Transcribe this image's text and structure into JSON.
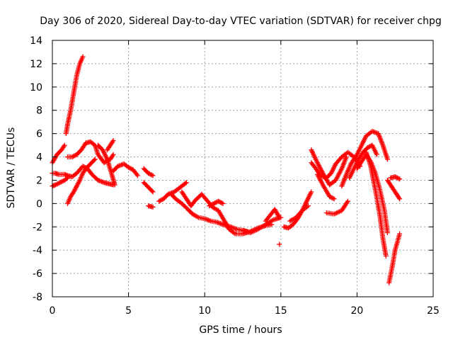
{
  "chart_data": {
    "type": "scatter",
    "title": "Day 306 of 2020, Sidereal Day-to-day VTEC variation (SDTVAR) for receiver chpg",
    "xlabel": "GPS time / hours",
    "ylabel": "SDTVAR / TECUs",
    "xlim": [
      0,
      25
    ],
    "ylim": [
      -8,
      14
    ],
    "xticks": [
      0,
      5,
      10,
      15,
      20,
      25
    ],
    "yticks": [
      -8,
      -6,
      -4,
      -2,
      0,
      2,
      4,
      6,
      8,
      10,
      12,
      14
    ],
    "grid": true,
    "marker": "+",
    "color": "#ff0000",
    "series": [
      {
        "name": "SDTVAR",
        "segments": [
          {
            "x": [
              0.0,
              0.3,
              0.6,
              0.8
            ],
            "y": [
              3.5,
              4.2,
              4.6,
              5.0
            ]
          },
          {
            "x": [
              0.0,
              0.2,
              0.4,
              0.6,
              0.8,
              1.0,
              1.3,
              1.6,
              2.0,
              2.3,
              2.6,
              3.0,
              3.4,
              3.7,
              4.0
            ],
            "y": [
              2.6,
              2.6,
              2.5,
              2.5,
              2.5,
              2.4,
              2.3,
              2.6,
              3.2,
              3.0,
              2.5,
              2.0,
              1.8,
              1.7,
              1.6
            ]
          },
          {
            "x": [
              0.0,
              0.2,
              0.5,
              0.8,
              1.0
            ],
            "y": [
              1.5,
              1.6,
              1.8,
              2.0,
              2.2
            ]
          },
          {
            "x": [
              0.9,
              1.0,
              1.2,
              1.4,
              1.6,
              1.8,
              2.0
            ],
            "y": [
              6.0,
              6.8,
              8.0,
              9.5,
              11.0,
              12.0,
              12.6
            ]
          },
          {
            "x": [
              1.0,
              1.2,
              1.4,
              1.6,
              1.8,
              2.0,
              2.2,
              2.5,
              2.8
            ],
            "y": [
              0.0,
              0.6,
              1.0,
              1.5,
              2.0,
              2.6,
              3.0,
              3.4,
              3.8
            ]
          },
          {
            "x": [
              1.0,
              1.3,
              1.6,
              1.9,
              2.2,
              2.5,
              2.8,
              3.0,
              3.4,
              3.8,
              4.0
            ],
            "y": [
              4.0,
              4.0,
              4.2,
              4.6,
              5.2,
              5.3,
              5.0,
              4.2,
              3.5,
              3.8,
              4.2
            ]
          },
          {
            "x": [
              3.0,
              3.3,
              3.6,
              3.9,
              4.1
            ],
            "y": [
              5.0,
              4.6,
              3.8,
              2.5,
              1.6
            ]
          },
          {
            "x": [
              4.0,
              3.8,
              3.6
            ],
            "y": [
              5.4,
              5.0,
              4.6
            ]
          },
          {
            "x": [
              4.0,
              4.3,
              4.7,
              5.0,
              5.3,
              5.6
            ],
            "y": [
              2.8,
              3.2,
              3.4,
              3.1,
              2.9,
              2.4
            ]
          },
          {
            "x": [
              6.0,
              6.3,
              6.6
            ],
            "y": [
              3.0,
              2.6,
              2.4
            ]
          },
          {
            "x": [
              6.0,
              6.3,
              6.6
            ],
            "y": [
              1.8,
              1.4,
              1.0
            ]
          },
          {
            "x": [
              6.3,
              6.6
            ],
            "y": [
              -0.2,
              -0.3
            ]
          },
          {
            "x": [
              7.0,
              7.3,
              7.6,
              8.0,
              8.3,
              8.6,
              8.8
            ],
            "y": [
              0.2,
              0.4,
              0.8,
              1.0,
              1.3,
              1.6,
              1.8
            ]
          },
          {
            "x": [
              7.8,
              8.1,
              8.5,
              8.9,
              9.2,
              9.6,
              10.0,
              10.4,
              10.8,
              11.2,
              11.7,
              12.1,
              12.5,
              12.8
            ],
            "y": [
              0.8,
              0.4,
              0.0,
              -0.5,
              -0.9,
              -1.2,
              -1.3,
              -1.5,
              -1.6,
              -1.8,
              -2.0,
              -2.2,
              -2.3,
              -2.4
            ]
          },
          {
            "x": [
              8.5,
              8.8,
              9.1,
              9.4,
              9.8,
              10.2,
              10.5,
              10.9,
              11.3,
              11.6,
              12.0,
              12.5,
              13.0,
              13.5,
              14.0,
              14.4
            ],
            "y": [
              1.0,
              0.4,
              -0.2,
              0.3,
              0.8,
              0.2,
              -0.3,
              -0.6,
              -1.5,
              -2.2,
              -2.6,
              -2.6,
              -2.4,
              -2.1,
              -1.9,
              -1.8
            ]
          },
          {
            "x": [
              10.3,
              10.6,
              10.9,
              11.2
            ],
            "y": [
              -0.2,
              0.0,
              0.2,
              0.0
            ]
          },
          {
            "x": [
              12.5,
              13.0,
              13.5,
              14.0,
              14.5,
              15.0
            ],
            "y": [
              -2.3,
              -2.5,
              -2.2,
              -1.8,
              -1.4,
              -1.2
            ]
          },
          {
            "x": [
              14.0,
              14.3,
              14.6,
              14.9
            ],
            "y": [
              -1.5,
              -1.0,
              -0.5,
              -1.2
            ]
          },
          {
            "x": [
              14.9
            ],
            "y": [
              -3.5
            ]
          },
          {
            "x": [
              15.2,
              15.5,
              15.8,
              16.1,
              16.4,
              16.7,
              17.0
            ],
            "y": [
              -2.0,
              -2.1,
              -1.8,
              -1.3,
              -0.6,
              0.2,
              1.0
            ]
          },
          {
            "x": [
              15.6,
              16.0,
              16.4,
              16.8
            ],
            "y": [
              -1.5,
              -1.2,
              -0.6,
              -0.2
            ]
          },
          {
            "x": [
              17.0,
              17.4,
              17.8,
              18.2,
              18.6,
              19.0,
              19.3
            ],
            "y": [
              4.6,
              3.5,
              2.5,
              1.6,
              2.0,
              3.0,
              4.0
            ]
          },
          {
            "x": [
              17.0,
              17.3,
              17.6,
              18.0,
              18.3,
              18.6,
              19.0,
              19.4,
              19.8,
              20.2
            ],
            "y": [
              3.5,
              3.0,
              2.4,
              2.2,
              2.6,
              3.4,
              4.0,
              4.4,
              4.0,
              3.2
            ]
          },
          {
            "x": [
              17.4,
              17.8,
              18.2,
              18.5
            ],
            "y": [
              2.5,
              1.5,
              0.6,
              0.4
            ]
          },
          {
            "x": [
              18.0,
              18.5,
              19.0,
              19.4
            ],
            "y": [
              -0.8,
              -0.9,
              -0.6,
              0.2
            ]
          },
          {
            "x": [
              19.0,
              19.3,
              19.6,
              20.0,
              20.3,
              20.6,
              21.0,
              21.4,
              21.7,
              22.0
            ],
            "y": [
              1.5,
              2.5,
              3.4,
              4.2,
              5.0,
              5.8,
              6.2,
              6.0,
              5.0,
              3.8
            ]
          },
          {
            "x": [
              19.5,
              19.8,
              20.1,
              20.4,
              20.7,
              21.0,
              21.3
            ],
            "y": [
              2.2,
              3.0,
              3.8,
              4.4,
              4.8,
              5.0,
              4.2
            ]
          },
          {
            "x": [
              20.0,
              20.3,
              20.6,
              20.9,
              21.2,
              21.5,
              21.8,
              22.0
            ],
            "y": [
              3.0,
              3.6,
              4.2,
              3.6,
              2.6,
              1.2,
              -0.6,
              -2.5
            ]
          },
          {
            "x": [
              20.6,
              20.9,
              21.2,
              21.5,
              21.7,
              21.9
            ],
            "y": [
              4.4,
              3.2,
              1.2,
              -1.0,
              -3.0,
              -4.5
            ]
          },
          {
            "x": [
              22.0,
              22.2,
              22.4,
              22.6,
              22.8
            ],
            "y": [
              2.0,
              1.6,
              1.2,
              0.8,
              0.4
            ]
          },
          {
            "x": [
              22.2,
              22.5,
              22.8
            ],
            "y": [
              2.2,
              2.3,
              2.1
            ]
          },
          {
            "x": [
              22.1,
              22.3,
              22.5,
              22.8
            ],
            "y": [
              -6.8,
              -5.5,
              -4.0,
              -2.6
            ]
          }
        ]
      }
    ]
  }
}
